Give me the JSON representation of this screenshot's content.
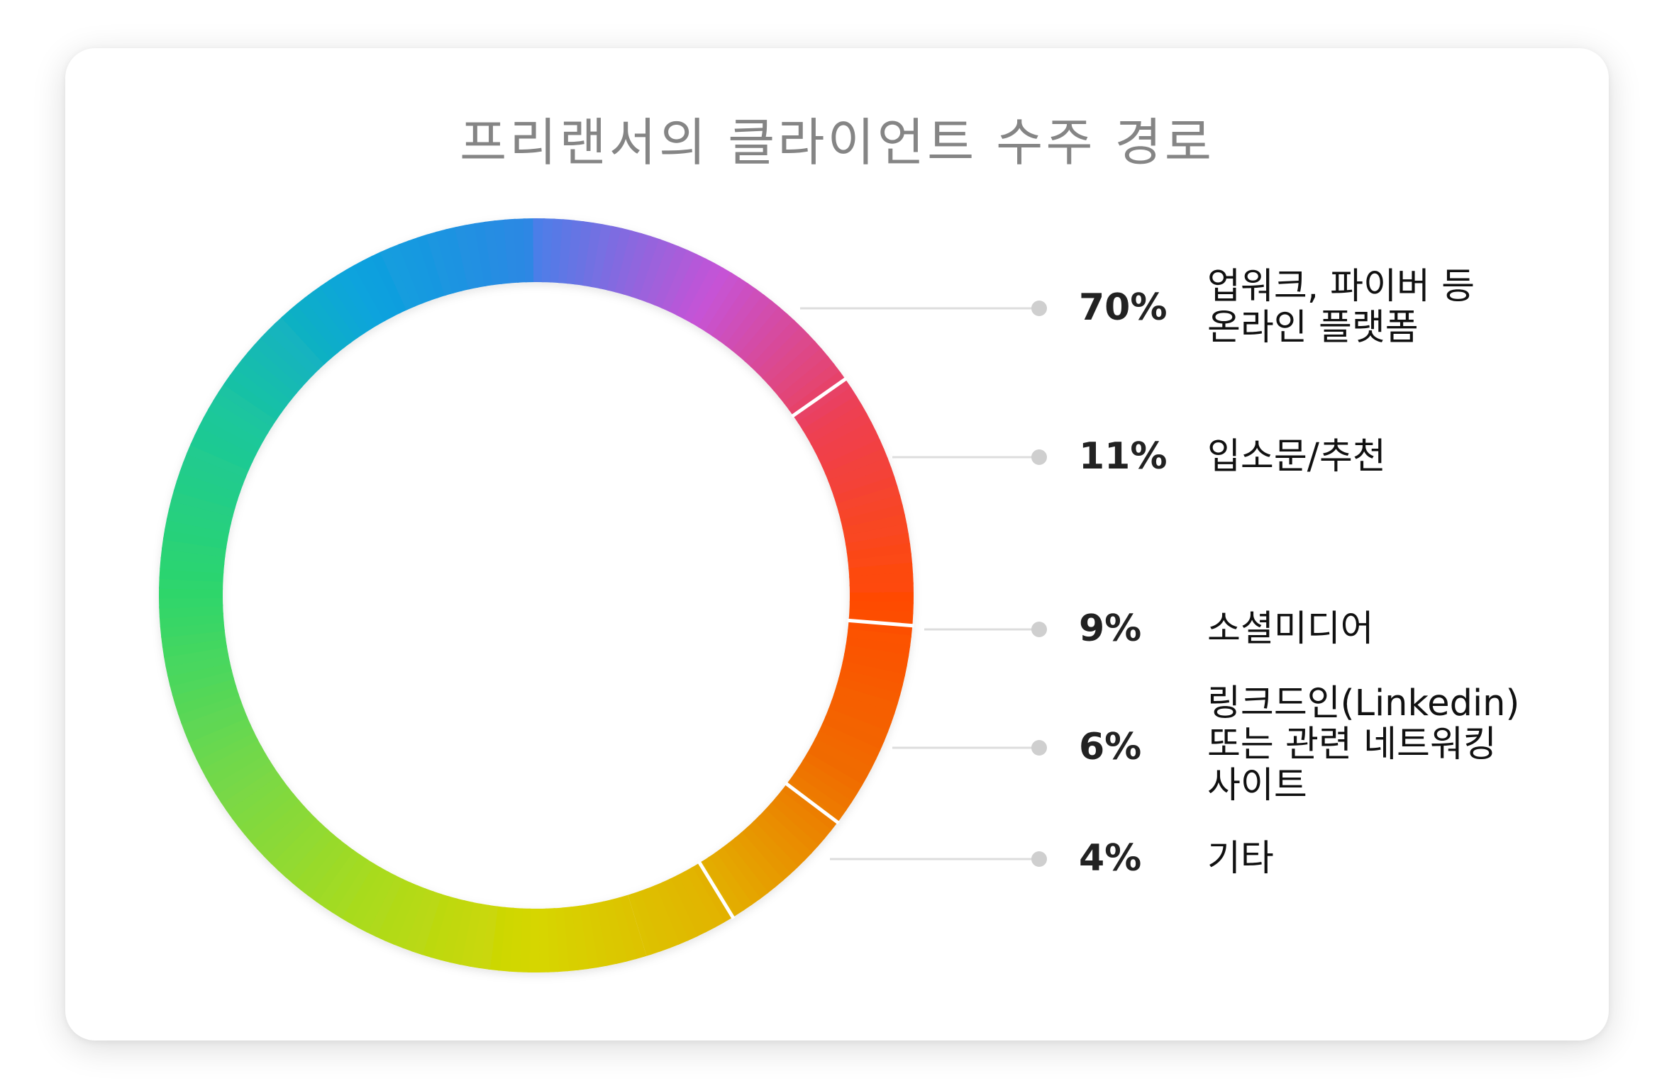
{
  "chart_data": {
    "type": "pie",
    "variant": "donut",
    "title": "프리랜서의 클라이언트 수주 경로",
    "categories": [
      "업워크, 파이버 등 온라인 플랫폼",
      "입소문/추천",
      "소셜미디어",
      "링크드인(Linkedin) 또는 관련 네트워킹 사이트",
      "기타"
    ],
    "values": [
      70,
      11,
      9,
      6,
      4
    ],
    "value_labels": [
      "70%",
      "11%",
      "9%",
      "6%",
      "4%"
    ],
    "label_lines": [
      [
        "업워크, 파이버 등",
        "온라인 플랫폼"
      ],
      [
        "입소문/추천"
      ],
      [
        "소셜미디어"
      ],
      [
        "링크드인(Linkedin)",
        "또는 관련 네트워킹",
        "사이트"
      ],
      [
        "기타"
      ]
    ],
    "legend_position": "right",
    "colors": {
      "gradient_stops": [
        "#4b7ee8",
        "#c653d6",
        "#ee3f52",
        "#ff4a06",
        "#f06c00",
        "#e2b300",
        "#d6d600",
        "#a8db1e",
        "#73d84a",
        "#2ed66b",
        "#1cc79b",
        "#0aa3dd",
        "#2f86e4"
      ],
      "separator": "#ffffff",
      "leader_line": "#dddddd",
      "leader_dot": "#cfcfcf"
    }
  }
}
